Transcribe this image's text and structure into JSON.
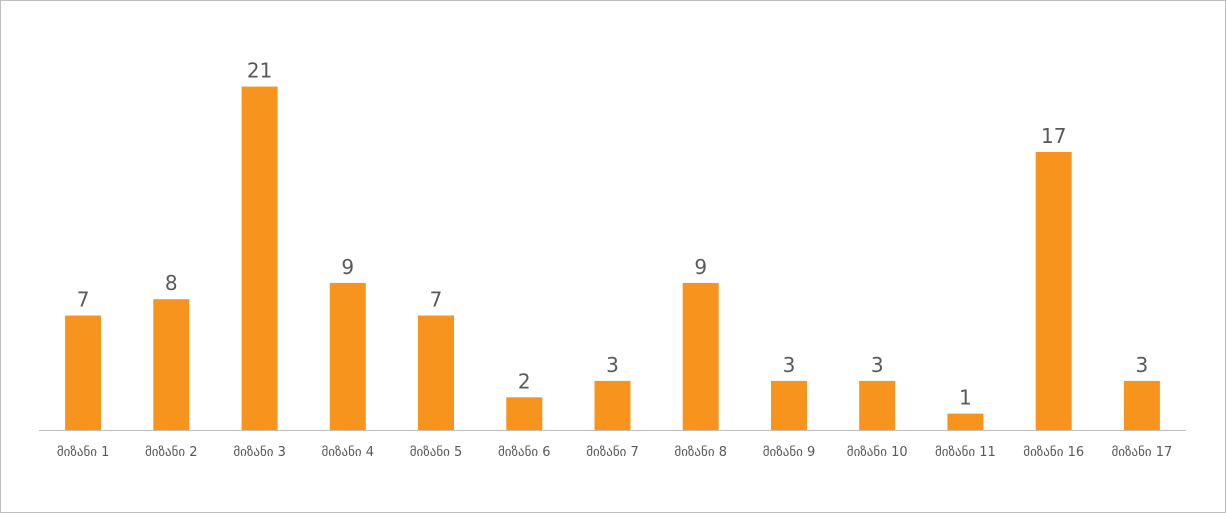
{
  "chart_data": {
    "type": "bar",
    "categories": [
      "მიზანი 1",
      "მიზანი 2",
      "მიზანი 3",
      "მიზანი 4",
      "მიზანი 5",
      "მიზანი 6",
      "მიზანი 7",
      "მიზანი 8",
      "მიზანი 9",
      "მიზანი 10",
      "მიზანი 11",
      "მიზანი 16",
      "მიზანი 17"
    ],
    "values": [
      7,
      8,
      21,
      9,
      7,
      2,
      3,
      9,
      3,
      3,
      1,
      17,
      3
    ],
    "title": "",
    "xlabel": "",
    "ylabel": "",
    "ylim": [
      0,
      22
    ],
    "grid": false,
    "legend": "none",
    "data_labels": true,
    "bar_color": "#F7941D",
    "axis_color": "#BFBFBF",
    "label_color": "#595959"
  }
}
